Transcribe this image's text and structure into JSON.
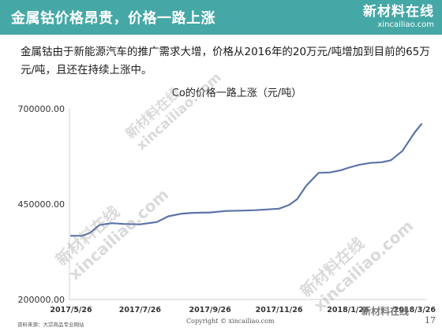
{
  "header": {
    "title": "金属钴价格昂贵，价格一路上涨"
  },
  "logo": {
    "name": "新材料在线",
    "url": "xincailiao.com"
  },
  "intro": {
    "text": "金属钴由于新能源汽车的推广需求大增，价格从2016年的20万元/吨增加到目前的65万元/吨，且还在持续上涨中。"
  },
  "chart_data": {
    "type": "line",
    "title": "Co的价格一路上涨（元/吨）",
    "xlabel": "",
    "ylabel": "",
    "ylim": [
      200000,
      700000
    ],
    "yticks": [
      "700000.00",
      "450000.00",
      "200000.00"
    ],
    "xticks": [
      "2017/5/26",
      "2017/7/26",
      "2017/9/26",
      "2017/11/26",
      "2018/1/26",
      "2018/3/26"
    ],
    "grid": false,
    "line_color": "#5b73a8",
    "series": [
      {
        "x": [
          "2017/5/26",
          "2017/6/5",
          "2017/6/12",
          "2017/6/20",
          "2017/7/1",
          "2017/7/12",
          "2017/7/26",
          "2017/8/10",
          "2017/8/20",
          "2017/9/1",
          "2017/9/10",
          "2017/9/26",
          "2017/10/10",
          "2017/10/25",
          "2017/11/5",
          "2017/11/15",
          "2017/11/26",
          "2017/12/5",
          "2017/12/12",
          "2017/12/20",
          "2017/12/31",
          "2018/1/10",
          "2018/1/20",
          "2018/1/26",
          "2018/2/5",
          "2018/2/15",
          "2018/2/25",
          "2018/3/5",
          "2018/3/15",
          "2018/3/26",
          "2018/4/1"
        ],
        "values": [
          367000,
          367000,
          375000,
          395000,
          400000,
          398000,
          397000,
          403000,
          418000,
          425000,
          427000,
          428000,
          432000,
          433000,
          434000,
          436000,
          438000,
          448000,
          463000,
          498000,
          532000,
          533000,
          539000,
          545000,
          553000,
          558000,
          560000,
          565000,
          589000,
          638000,
          660000
        ]
      }
    ]
  },
  "watermark": {
    "cn": "新材料在线",
    "url": "xincailiao.com"
  },
  "footer": {
    "source": "资料来源：大宗商品专业网站",
    "copyright": "Copyright © xincailiao.com",
    "brand": "新材料在线",
    "page": "17"
  }
}
